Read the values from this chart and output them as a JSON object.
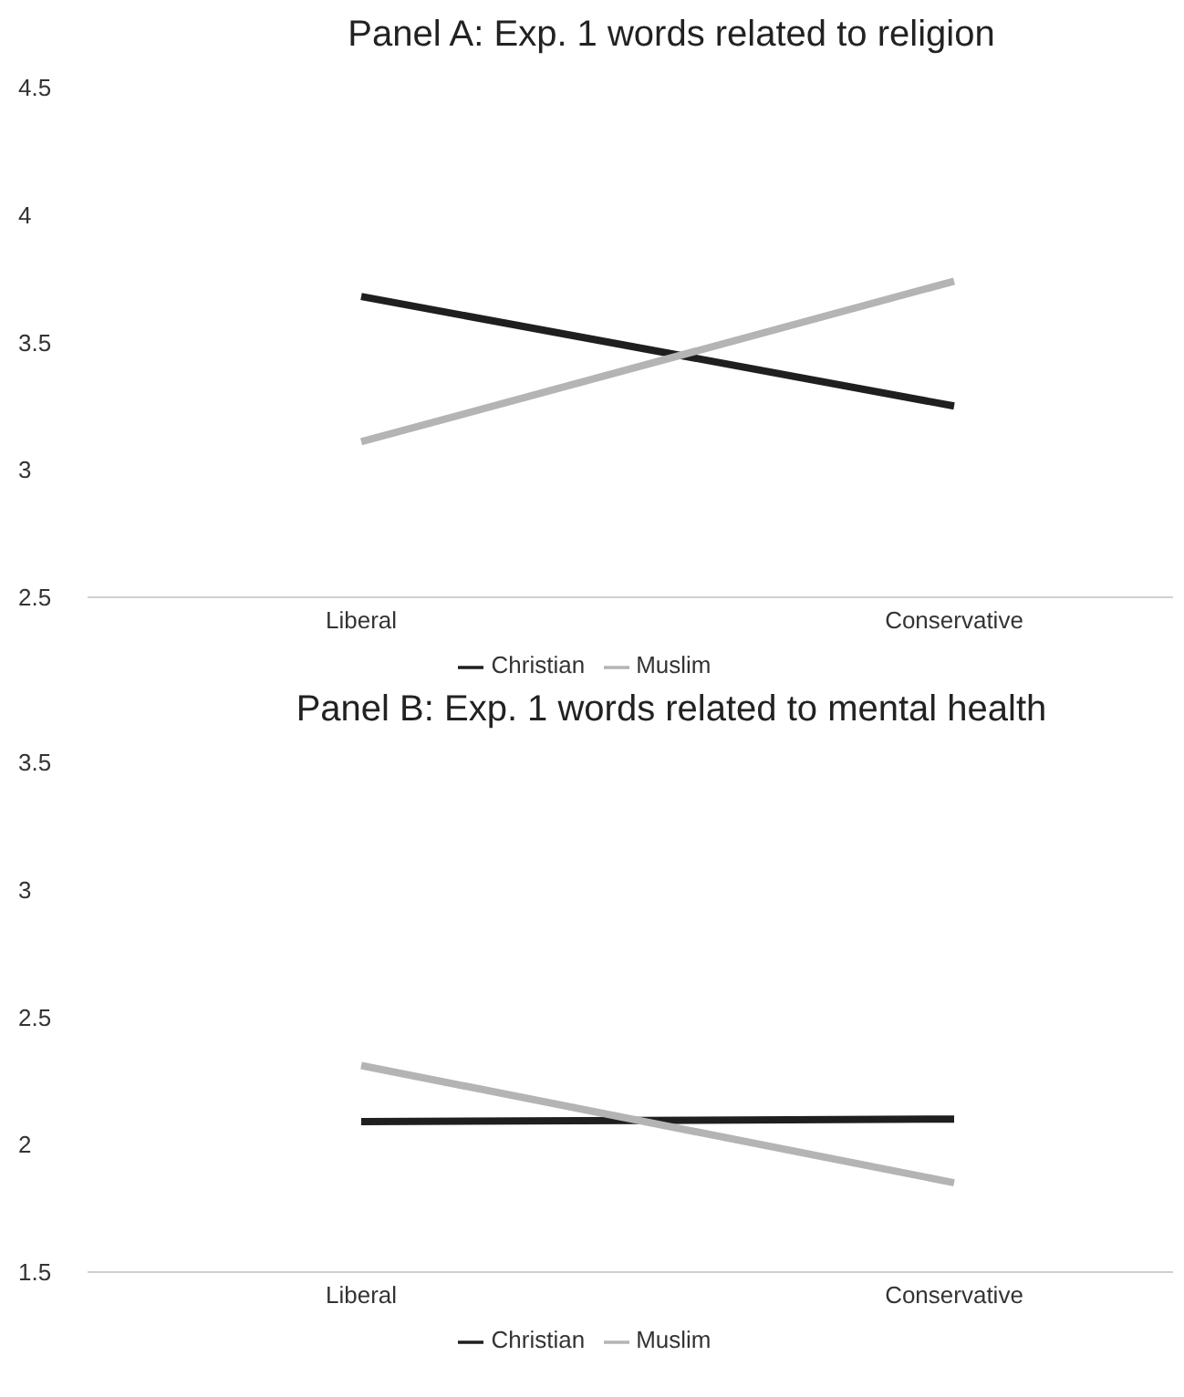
{
  "chart_data": [
    {
      "type": "line",
      "title": "Panel A: Exp. 1 words related to religion",
      "categories": [
        "Liberal",
        "Conservative"
      ],
      "series": [
        {
          "name": "Christian",
          "color": "#1f1f1f",
          "values": [
            3.68,
            3.25
          ]
        },
        {
          "name": "Muslim",
          "color": "#b4b4b4",
          "values": [
            3.11,
            3.74
          ]
        }
      ],
      "ylim": [
        2.5,
        4.5
      ],
      "yticks": [
        2.5,
        3,
        3.5,
        4,
        4.5
      ],
      "grid": false,
      "legend": "bottom",
      "marker": "none",
      "line_style": "solid"
    },
    {
      "type": "line",
      "title": "Panel B: Exp. 1 words related to mental health",
      "categories": [
        "Liberal",
        "Conservative"
      ],
      "series": [
        {
          "name": "Christian",
          "color": "#1f1f1f",
          "values": [
            2.09,
            2.1
          ]
        },
        {
          "name": "Muslim",
          "color": "#b4b4b4",
          "values": [
            2.31,
            1.85
          ]
        }
      ],
      "ylim": [
        1.5,
        3.5
      ],
      "yticks": [
        1.5,
        2,
        2.5,
        3,
        3.5
      ],
      "grid": false,
      "legend": "bottom",
      "marker": "none",
      "line_style": "solid"
    }
  ]
}
